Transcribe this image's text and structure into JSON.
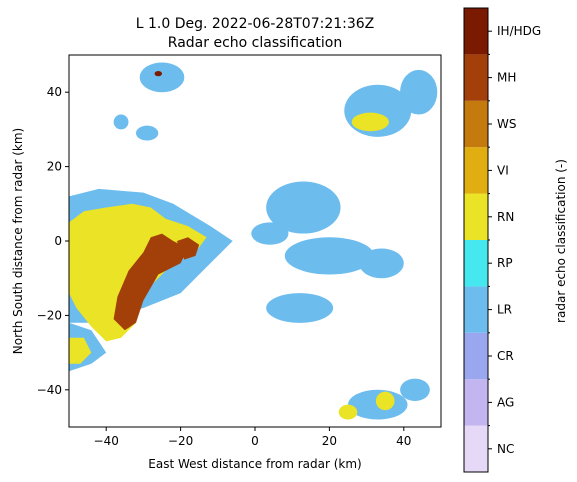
{
  "chart_data": {
    "type": "heatmap",
    "title": "L 1.0 Deg. 2022-06-28T07:21:36Z",
    "subtitle": "Radar echo classification",
    "xlabel": "East West distance from radar (km)",
    "ylabel": "North South distance from radar (km)",
    "xlim": [
      -50,
      50
    ],
    "ylim": [
      -50,
      50
    ],
    "x_ticks": [
      -40,
      -20,
      0,
      20,
      40
    ],
    "y_ticks": [
      -40,
      -20,
      0,
      20,
      40
    ],
    "x_tick_labels": [
      "−40",
      "−20",
      "0",
      "20",
      "40"
    ],
    "y_tick_labels": [
      "−40",
      "−20",
      "0",
      "20",
      "40"
    ],
    "grid": false,
    "colorbar": {
      "label": "radar echo classification (-)",
      "classes": [
        {
          "code": "NC",
          "color": "#e6d8f7"
        },
        {
          "code": "AG",
          "color": "#c3b6f0"
        },
        {
          "code": "CR",
          "color": "#9aa6ee"
        },
        {
          "code": "LR",
          "color": "#6cbcee"
        },
        {
          "code": "RP",
          "color": "#44e8ee"
        },
        {
          "code": "RN",
          "color": "#ebe325"
        },
        {
          "code": "VI",
          "color": "#e0ae10"
        },
        {
          "code": "WS",
          "color": "#c47a0c"
        },
        {
          "code": "MH",
          "color": "#a3400a"
        },
        {
          "code": "IH/HDG",
          "color": "#7a1a00"
        }
      ]
    },
    "regions": [
      {
        "class": "LR",
        "shape": "poly",
        "points": [
          [
            -50,
            12
          ],
          [
            -42,
            14
          ],
          [
            -30,
            13
          ],
          [
            -22,
            10
          ],
          [
            -12,
            4
          ],
          [
            -6,
            0
          ],
          [
            -12,
            -6
          ],
          [
            -20,
            -14
          ],
          [
            -30,
            -18
          ],
          [
            -38,
            -20
          ],
          [
            -44,
            -22
          ],
          [
            -50,
            -22
          ]
        ]
      },
      {
        "class": "LR",
        "shape": "poly",
        "points": [
          [
            -50,
            -22
          ],
          [
            -44,
            -24
          ],
          [
            -40,
            -30
          ],
          [
            -44,
            -33
          ],
          [
            -50,
            -35
          ]
        ]
      },
      {
        "class": "RN",
        "shape": "poly",
        "points": [
          [
            -50,
            5
          ],
          [
            -46,
            8
          ],
          [
            -40,
            9
          ],
          [
            -33,
            10
          ],
          [
            -28,
            9
          ],
          [
            -24,
            6
          ],
          [
            -18,
            4
          ],
          [
            -13,
            1
          ],
          [
            -16,
            -3
          ],
          [
            -22,
            -6
          ],
          [
            -28,
            -12
          ],
          [
            -32,
            -17
          ],
          [
            -32,
            -22
          ],
          [
            -36,
            -26
          ],
          [
            -40,
            -27
          ],
          [
            -44,
            -23
          ],
          [
            -48,
            -18
          ],
          [
            -50,
            -14
          ]
        ]
      },
      {
        "class": "RN",
        "shape": "poly",
        "points": [
          [
            -50,
            -26
          ],
          [
            -46,
            -26
          ],
          [
            -44,
            -30
          ],
          [
            -47,
            -33
          ],
          [
            -50,
            -33
          ]
        ]
      },
      {
        "class": "MH",
        "shape": "poly",
        "points": [
          [
            -28,
            1
          ],
          [
            -25,
            2
          ],
          [
            -22,
            0
          ],
          [
            -18,
            -2
          ],
          [
            -20,
            -6
          ],
          [
            -26,
            -9
          ],
          [
            -30,
            -16
          ],
          [
            -32,
            -22
          ],
          [
            -35,
            -24
          ],
          [
            -38,
            -21
          ],
          [
            -37,
            -15
          ],
          [
            -34,
            -8
          ],
          [
            -30,
            -3
          ]
        ]
      },
      {
        "class": "MH",
        "shape": "poly",
        "points": [
          [
            -21,
            0
          ],
          [
            -18,
            1
          ],
          [
            -15,
            -1
          ],
          [
            -16,
            -4
          ],
          [
            -19,
            -5
          ]
        ]
      },
      {
        "class": "LR",
        "shape": "ellipse",
        "cx": 13,
        "cy": 9,
        "rx": 10,
        "ry": 7
      },
      {
        "class": "LR",
        "shape": "ellipse",
        "cx": 4,
        "cy": 2,
        "rx": 5,
        "ry": 3
      },
      {
        "class": "LR",
        "shape": "ellipse",
        "cx": 20,
        "cy": -4,
        "rx": 12,
        "ry": 5
      },
      {
        "class": "LR",
        "shape": "ellipse",
        "cx": 12,
        "cy": -18,
        "rx": 9,
        "ry": 4
      },
      {
        "class": "LR",
        "shape": "ellipse",
        "cx": 34,
        "cy": -6,
        "rx": 6,
        "ry": 4
      },
      {
        "class": "LR",
        "shape": "ellipse",
        "cx": 33,
        "cy": 35,
        "rx": 9,
        "ry": 7
      },
      {
        "class": "LR",
        "shape": "ellipse",
        "cx": 44,
        "cy": 40,
        "rx": 5,
        "ry": 6
      },
      {
        "class": "RN",
        "shape": "ellipse",
        "cx": 31,
        "cy": 32,
        "rx": 5,
        "ry": 2.5
      },
      {
        "class": "LR",
        "shape": "ellipse",
        "cx": 33,
        "cy": -44,
        "rx": 8,
        "ry": 4
      },
      {
        "class": "LR",
        "shape": "ellipse",
        "cx": 43,
        "cy": -40,
        "rx": 4,
        "ry": 3
      },
      {
        "class": "RN",
        "shape": "ellipse",
        "cx": 35,
        "cy": -43,
        "rx": 2.5,
        "ry": 2.5
      },
      {
        "class": "RN",
        "shape": "ellipse",
        "cx": 25,
        "cy": -46,
        "rx": 2.5,
        "ry": 2
      },
      {
        "class": "LR",
        "shape": "ellipse",
        "cx": -25,
        "cy": 44,
        "rx": 6,
        "ry": 4
      },
      {
        "class": "LR",
        "shape": "ellipse",
        "cx": -29,
        "cy": 29,
        "rx": 3,
        "ry": 2
      },
      {
        "class": "LR",
        "shape": "ellipse",
        "cx": -36,
        "cy": 32,
        "rx": 2,
        "ry": 2
      },
      {
        "class": "IH/HDG",
        "shape": "ellipse",
        "cx": -26,
        "cy": 45,
        "rx": 1,
        "ry": 0.7
      }
    ]
  }
}
